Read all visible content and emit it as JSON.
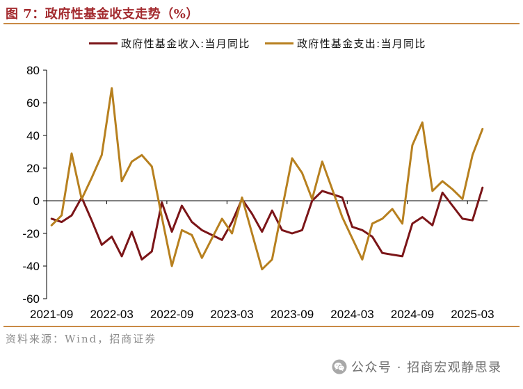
{
  "chart_data": {
    "type": "line",
    "title": "图 7：政府性基金收支走势（%）",
    "ylim": [
      -60,
      80
    ],
    "yticks": [
      80,
      60,
      40,
      20,
      0,
      -20,
      -40,
      -60
    ],
    "xticks": [
      "2021-09",
      "2022-03",
      "2022-09",
      "2023-03",
      "2023-09",
      "2024-03",
      "2024-09",
      "2025-03"
    ],
    "x": [
      "2021-09",
      "2021-10",
      "2021-11",
      "2021-12",
      "2022-01",
      "2022-02",
      "2022-03",
      "2022-04",
      "2022-05",
      "2022-06",
      "2022-07",
      "2022-08",
      "2022-09",
      "2022-10",
      "2022-11",
      "2022-12",
      "2023-01",
      "2023-02",
      "2023-03",
      "2023-04",
      "2023-05",
      "2023-06",
      "2023-07",
      "2023-08",
      "2023-09",
      "2023-10",
      "2023-11",
      "2023-12",
      "2024-01",
      "2024-02",
      "2024-03",
      "2024-04",
      "2024-05",
      "2024-06",
      "2024-07",
      "2024-08",
      "2024-09",
      "2024-10",
      "2024-11",
      "2024-12",
      "2025-01",
      "2025-02",
      "2025-03",
      "2025-04"
    ],
    "grid": false,
    "legend": "top",
    "series": [
      {
        "name": "政府性基金收入:当月同比",
        "color": "#7B1518",
        "values": [
          -11,
          -13,
          -9,
          2,
          -12,
          -27,
          -22,
          -34,
          -19,
          -36,
          -31,
          -1,
          -19,
          -3,
          -13,
          -18,
          -21,
          -24,
          -13,
          1,
          -8,
          -19,
          -6,
          -18,
          -20,
          -18,
          0,
          6,
          4,
          2,
          -16,
          -18,
          -22,
          -32,
          -33,
          -34,
          -14,
          -10,
          -15,
          5,
          -3,
          -11,
          -12,
          8
        ]
      },
      {
        "name": "政府性基金支出:当月同比",
        "color": "#B7801F",
        "values": [
          -15,
          -9,
          29,
          1,
          14,
          28,
          69,
          12,
          24,
          28,
          21,
          -10,
          -40,
          -18,
          -21,
          -35,
          -23,
          -11,
          -20,
          2,
          -20,
          -42,
          -36,
          -5,
          26,
          17,
          1,
          24,
          7,
          -10,
          -23,
          -36,
          -14,
          -11,
          -5,
          -14,
          34,
          48,
          6,
          12,
          7,
          1,
          28,
          44
        ]
      }
    ]
  },
  "source": "资料来源：Wind，招商证券",
  "watermark": {
    "text": "公众号 · 招商宏观静思录",
    "icon": "wechat-icon"
  },
  "colors": {
    "title": "#A32A2E",
    "rule": "#C98A45",
    "muted_text": "#8C8C8C"
  }
}
